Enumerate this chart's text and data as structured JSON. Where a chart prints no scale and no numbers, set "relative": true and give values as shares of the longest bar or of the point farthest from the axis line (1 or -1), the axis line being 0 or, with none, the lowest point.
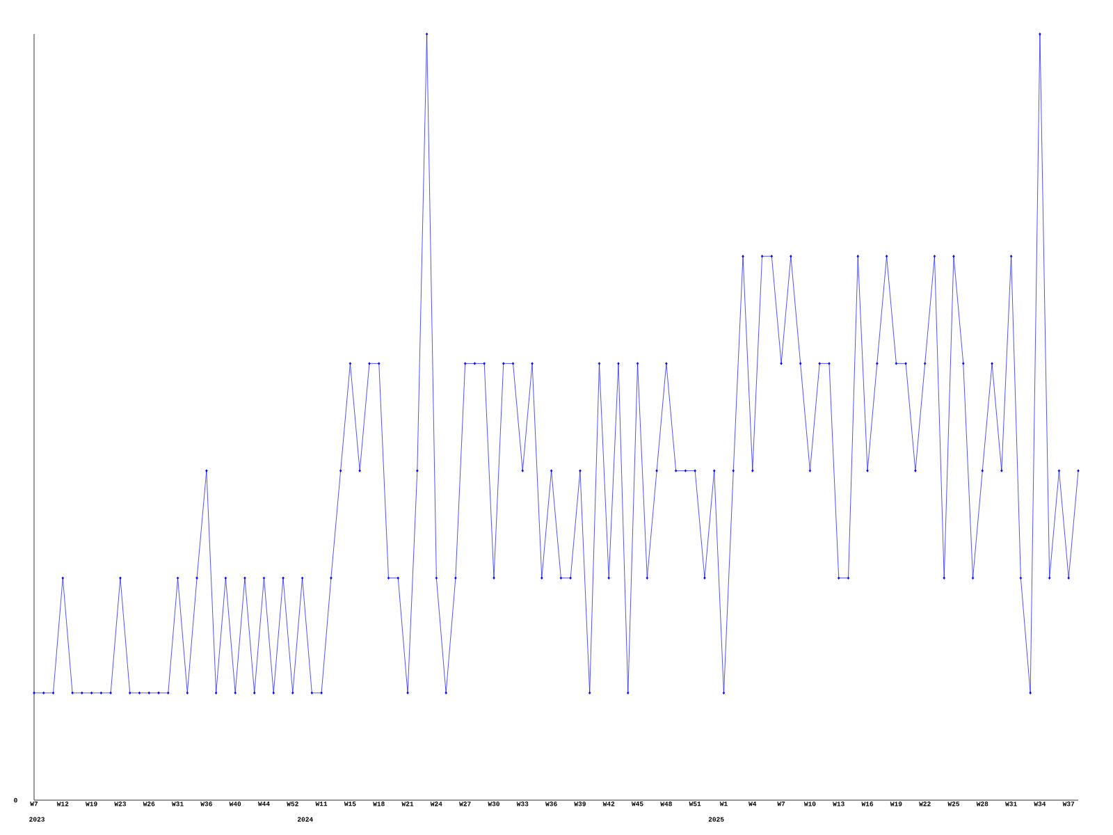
{
  "chart_data": {
    "type": "line",
    "relative": true,
    "color": "#0000ff",
    "marker": "diamond",
    "line_style": "solid",
    "categories": [
      "W7",
      null,
      null,
      "W12",
      null,
      null,
      "W19",
      null,
      null,
      "W23",
      null,
      null,
      "W26",
      null,
      null,
      "W31",
      null,
      null,
      "W36",
      null,
      null,
      "W40",
      null,
      null,
      "W44",
      null,
      null,
      "W52",
      null,
      null,
      "W11",
      null,
      null,
      "W15",
      null,
      null,
      "W18",
      null,
      null,
      "W21",
      null,
      null,
      "W24",
      null,
      null,
      "W27",
      null,
      null,
      "W30",
      null,
      null,
      "W33",
      null,
      null,
      "W36",
      null,
      null,
      "W39",
      null,
      null,
      "W42",
      null,
      null,
      "W45",
      null,
      null,
      "W48",
      null,
      null,
      "W51",
      null,
      null,
      "W1",
      null,
      null,
      "W4",
      null,
      null,
      "W7",
      null,
      null,
      "W10",
      null,
      null,
      "W13",
      null,
      null,
      "W16",
      null,
      null,
      "W19",
      null,
      null,
      "W22",
      null,
      null,
      "W25",
      null,
      null,
      "W28",
      null,
      null,
      "W31",
      null,
      null,
      "W34",
      null,
      null,
      "W37",
      null
    ],
    "values": [
      0.14,
      0.14,
      0.14,
      0.29,
      0.14,
      0.14,
      0.14,
      0.14,
      0.14,
      0.29,
      0.14,
      0.14,
      0.14,
      0.14,
      0.14,
      0.29,
      0.14,
      0.29,
      0.43,
      0.14,
      0.29,
      0.14,
      0.29,
      0.14,
      0.29,
      0.14,
      0.29,
      0.14,
      0.29,
      0.14,
      0.14,
      0.29,
      0.43,
      0.57,
      0.43,
      0.57,
      0.57,
      0.29,
      0.29,
      0.14,
      0.43,
      1,
      0.29,
      0.14,
      0.29,
      0.57,
      0.57,
      0.57,
      0.29,
      0.57,
      0.57,
      0.43,
      0.57,
      0.29,
      0.43,
      0.29,
      0.29,
      0.43,
      0.14,
      0.57,
      0.29,
      0.57,
      0.14,
      0.57,
      0.29,
      0.43,
      0.57,
      0.43,
      0.43,
      0.43,
      0.29,
      0.43,
      0.14,
      0.43,
      0.71,
      0.43,
      0.71,
      0.71,
      0.57,
      0.71,
      0.57,
      0.43,
      0.57,
      0.57,
      0.29,
      0.29,
      0.71,
      0.43,
      0.57,
      0.71,
      0.57,
      0.57,
      0.43,
      0.57,
      0.71,
      0.29,
      0.71,
      0.57,
      0.29,
      0.43,
      0.57,
      0.43,
      0.71,
      0.29,
      0.14,
      1,
      0.29,
      0.43,
      0.29,
      0.43
    ],
    "annotations": [
      "0",
      "2023",
      "2024",
      "2025"
    ]
  }
}
